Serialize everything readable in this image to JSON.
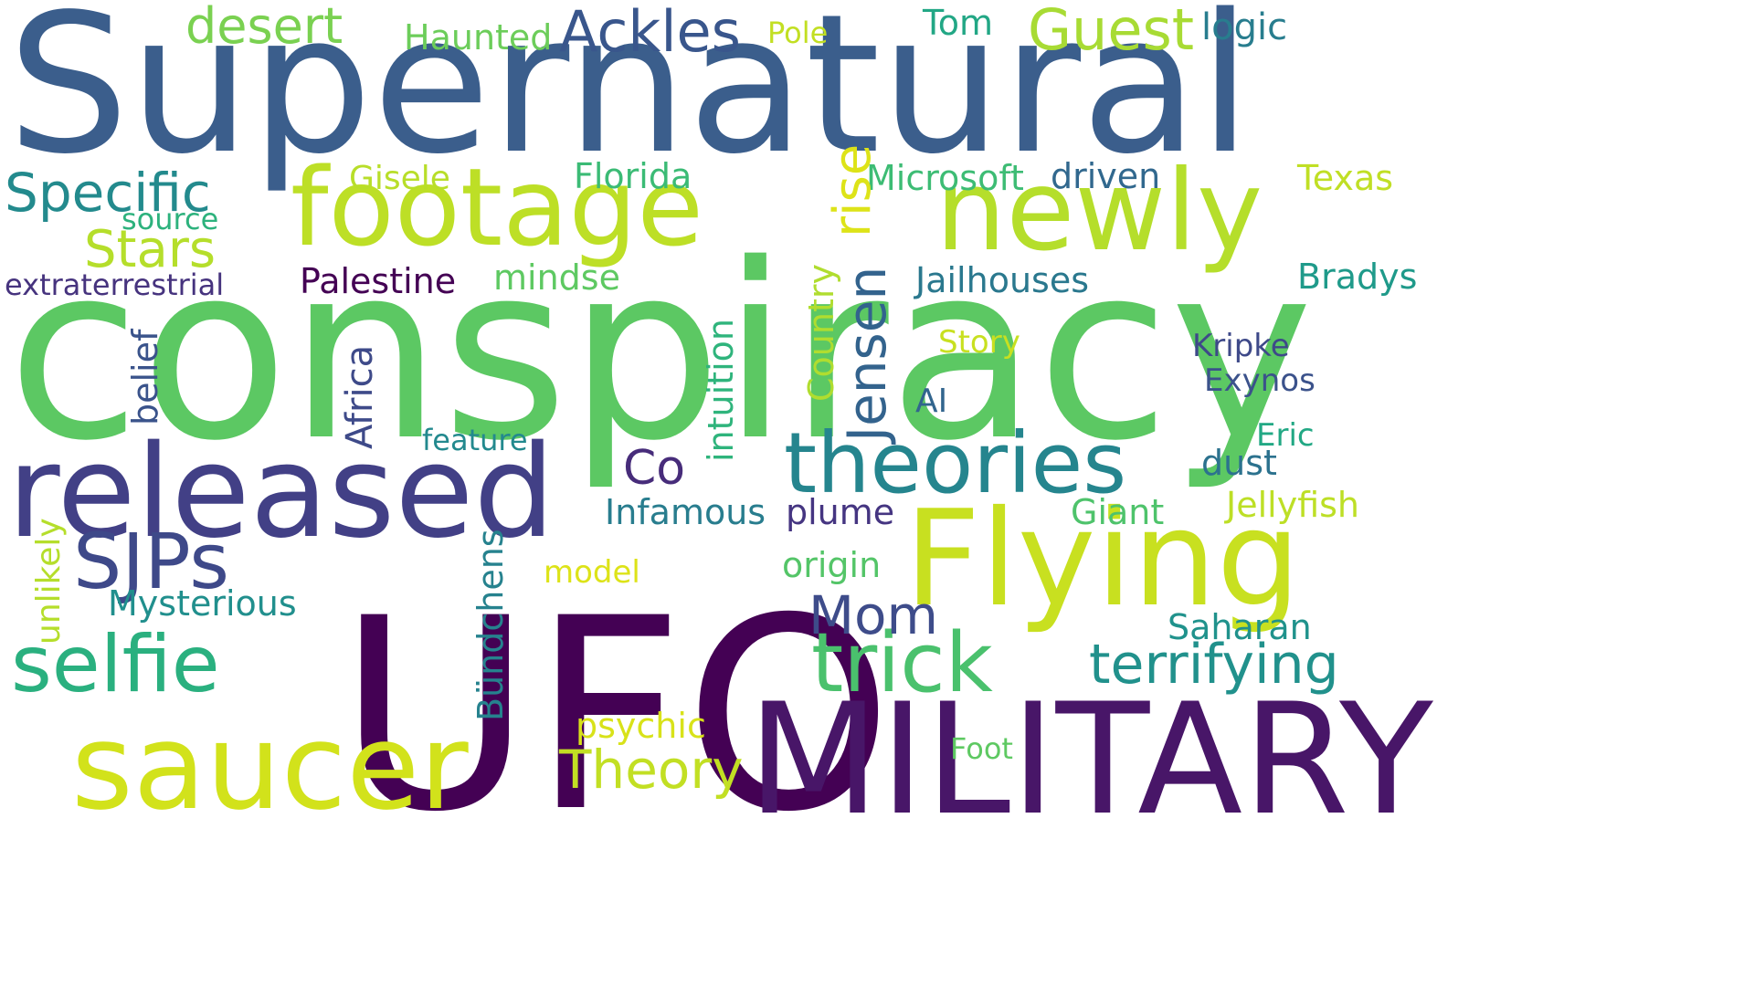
{
  "words": {
    "supernatural": {
      "text": "Supernatural",
      "color": "#3b5e8c"
    },
    "conspiracy": {
      "text": "conspiracy",
      "color": "#5cc863"
    },
    "ufo": {
      "text": "UFO",
      "color": "#440154"
    },
    "military": {
      "text": "MILITARY",
      "color": "#481668"
    },
    "released": {
      "text": "released",
      "color": "#424086"
    },
    "saucer": {
      "text": "saucer",
      "color": "#d2e21b"
    },
    "flying": {
      "text": "Flying",
      "color": "#c8e020"
    },
    "footage": {
      "text": "footage",
      "color": "#bddf26"
    },
    "newly": {
      "text": "newly",
      "color": "#b5de2b"
    },
    "theories": {
      "text": "theories",
      "color": "#25858e"
    },
    "selfie": {
      "text": "selfie",
      "color": "#2ab07f"
    },
    "sjps": {
      "text": "SJPs",
      "color": "#3e4989"
    },
    "trick": {
      "text": "trick",
      "color": "#4ac16d"
    },
    "terrifying": {
      "text": "terrifying",
      "color": "#21918c"
    },
    "theory": {
      "text": "Theory",
      "color": "#c2df23"
    },
    "mom": {
      "text": "Mom",
      "color": "#3e4c8a"
    },
    "co": {
      "text": "Co",
      "color": "#472c7a"
    },
    "ackles": {
      "text": "Ackles",
      "color": "#39568c"
    },
    "guest": {
      "text": "Guest",
      "color": "#a8db34"
    },
    "desert": {
      "text": "desert",
      "color": "#7ad151"
    },
    "haunted": {
      "text": "Haunted",
      "color": "#6ccd5a"
    },
    "pole": {
      "text": "Pole",
      "color": "#c2df23"
    },
    "tom": {
      "text": "Tom",
      "color": "#22a785"
    },
    "logic": {
      "text": "logic",
      "color": "#287d8e"
    },
    "specific": {
      "text": "Specific",
      "color": "#238a8d"
    },
    "stars": {
      "text": "Stars",
      "color": "#b5de2b"
    },
    "source": {
      "text": "source",
      "color": "#2db27d"
    },
    "gisele": {
      "text": "Gisele",
      "color": "#b8de29"
    },
    "florida": {
      "text": "Florida",
      "color": "#3bbb75"
    },
    "microsoft": {
      "text": "Microsoft",
      "color": "#3dbc74"
    },
    "driven": {
      "text": "driven",
      "color": "#31688e"
    },
    "texas": {
      "text": "Texas",
      "color": "#c0df25"
    },
    "extraterrestrial": {
      "text": "extraterrestrial",
      "color": "#46337e"
    },
    "palestine": {
      "text": "Palestine",
      "color": "#440154"
    },
    "mindse": {
      "text": "mindse",
      "color": "#5ec962"
    },
    "jailhouses": {
      "text": "Jailhouses",
      "color": "#2a788e"
    },
    "bradys": {
      "text": "Bradys",
      "color": "#1f9a8a"
    },
    "story": {
      "text": "Story",
      "color": "#c8e020"
    },
    "kripke": {
      "text": "Kripke",
      "color": "#3e4989"
    },
    "exynos": {
      "text": "Exynos",
      "color": "#3b528b"
    },
    "ai": {
      "text": "AI",
      "color": "#32658e"
    },
    "feature": {
      "text": "feature",
      "color": "#23898e"
    },
    "eric": {
      "text": "Eric",
      "color": "#22a884"
    },
    "dust": {
      "text": "dust",
      "color": "#2c728e"
    },
    "infamous": {
      "text": "Infamous",
      "color": "#287d8e"
    },
    "plume": {
      "text": "plume",
      "color": "#453581"
    },
    "giant": {
      "text": "Giant",
      "color": "#4ec36b"
    },
    "jellyfish": {
      "text": "Jellyfish",
      "color": "#bddf26"
    },
    "origin": {
      "text": "origin",
      "color": "#54c568"
    },
    "model": {
      "text": "model",
      "color": "#dde318"
    },
    "mysterious": {
      "text": "Mysterious",
      "color": "#218f8d"
    },
    "saharan": {
      "text": "Saharan",
      "color": "#20928c"
    },
    "psychic": {
      "text": "psychic",
      "color": "#d8e219"
    },
    "foot": {
      "text": "Foot",
      "color": "#5ec962"
    },
    "rise": {
      "text": "rise",
      "color": "#dde318"
    },
    "jensen": {
      "text": "Jensen",
      "color": "#33638d"
    },
    "country": {
      "text": "Country",
      "color": "#b0dd2f"
    },
    "intuition": {
      "text": "intuition",
      "color": "#2fb47c"
    },
    "africa": {
      "text": "Africa",
      "color": "#3e4a89"
    },
    "belief": {
      "text": "belief",
      "color": "#3a538b"
    },
    "unlikely": {
      "text": "unlikely",
      "color": "#b5de2b"
    },
    "bundchens": {
      "text": "Bündchens",
      "color": "#26828e"
    }
  }
}
